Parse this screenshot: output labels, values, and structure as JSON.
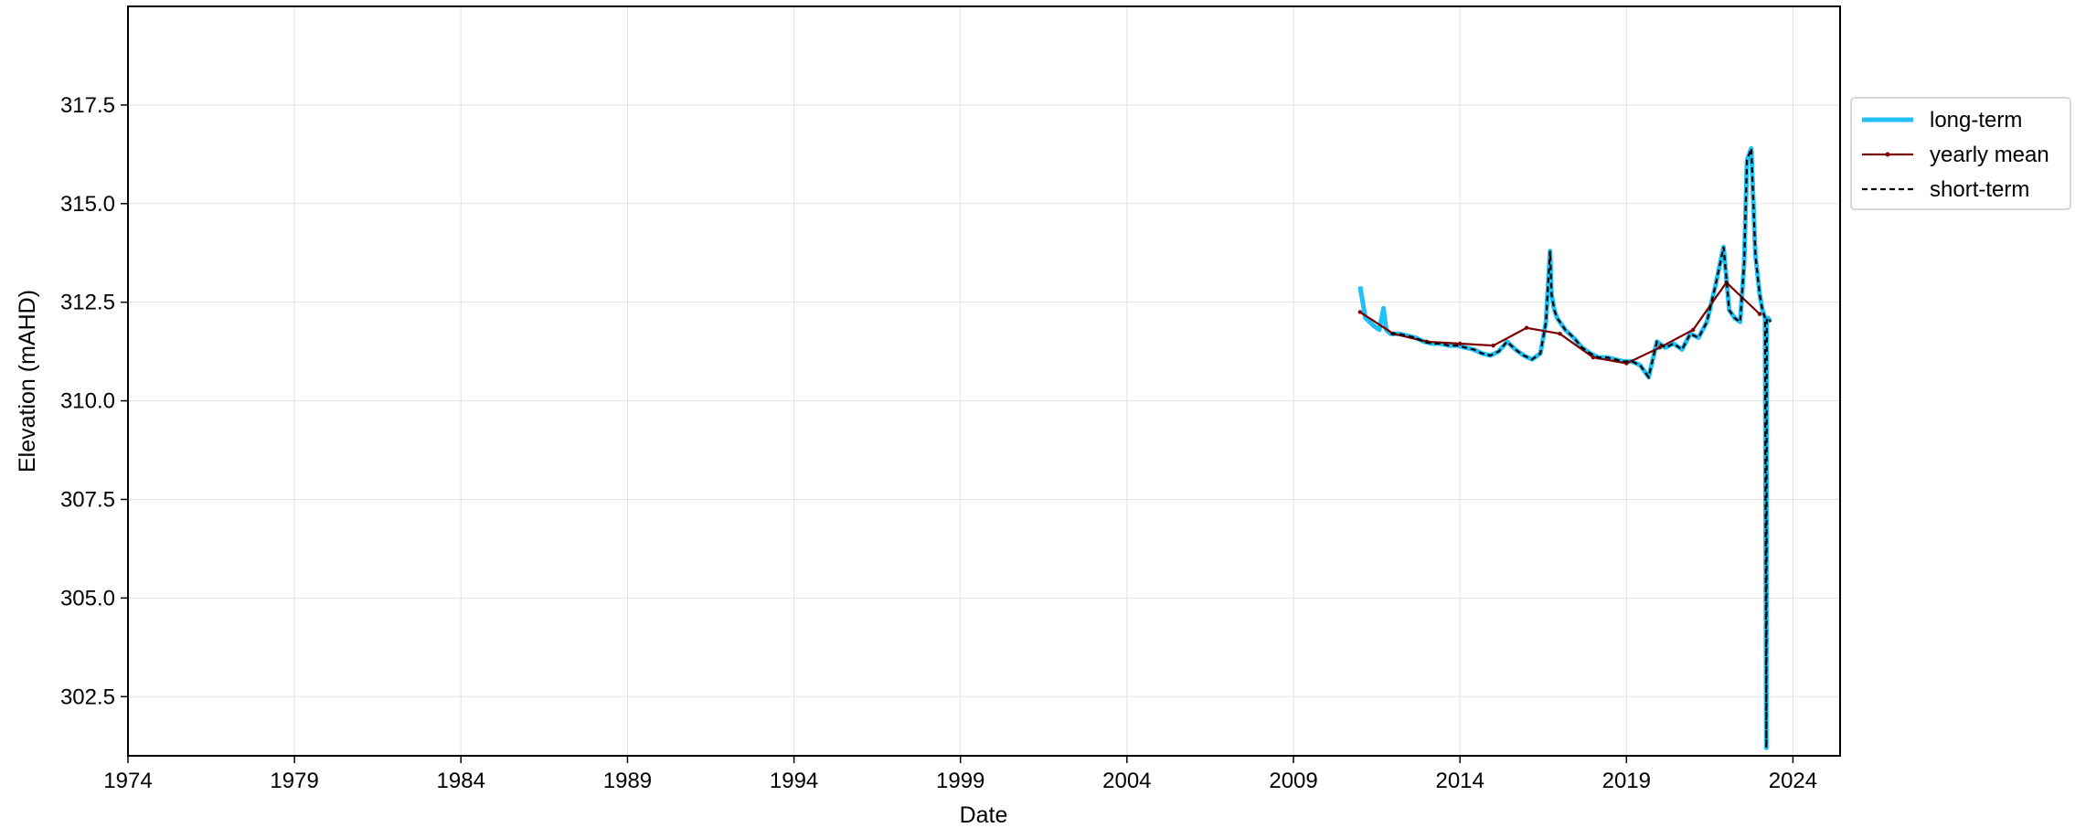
{
  "chart_data": {
    "type": "line",
    "xlabel": "Date",
    "ylabel": "Elevation (mAHD)",
    "x_axis_type": "date",
    "xlim": [
      "1974-01-01",
      "2025-06-01"
    ],
    "ylim": [
      301.0,
      320.0
    ],
    "x_ticks": [
      "1974-01-01",
      "1979-01-01",
      "1984-01-01",
      "1989-01-01",
      "1994-01-01",
      "1999-01-01",
      "2004-01-01",
      "2009-01-01",
      "2014-01-01",
      "2019-01-01",
      "2024-01-01"
    ],
    "x_tick_labels": [
      "1974",
      "1979",
      "1984",
      "1989",
      "1994",
      "1999",
      "2004",
      "2009",
      "2014",
      "2019",
      "2024"
    ],
    "y_ticks": [
      302.5,
      305.0,
      307.5,
      310.0,
      312.5,
      315.0,
      317.5
    ],
    "y_tick_labels": [
      "302.5",
      "305.0",
      "307.5",
      "310.0",
      "312.5",
      "315.0",
      "317.5"
    ],
    "grid": true,
    "legend_position": "outside-right-upper",
    "colors": {
      "long_term": "#1ec0f5",
      "yearly_mean": "#7b0000",
      "short_term": "#000000"
    },
    "series": [
      {
        "name": "long-term",
        "style": "solid-thick",
        "x": [
          "2011-01-01",
          "2011-03-01",
          "2011-06-01",
          "2011-08-01",
          "2011-09-15",
          "2011-10-15",
          "2011-12-01",
          "2012-03-01",
          "2012-06-01",
          "2012-09-01",
          "2012-12-01",
          "2013-03-01",
          "2013-06-01",
          "2013-09-01",
          "2013-12-01",
          "2014-03-01",
          "2014-06-01",
          "2014-09-01",
          "2014-12-01",
          "2015-03-01",
          "2015-06-01",
          "2015-09-01",
          "2015-12-01",
          "2016-03-01",
          "2016-06-01",
          "2016-08-01",
          "2016-09-15",
          "2016-10-01",
          "2016-11-01",
          "2016-12-01",
          "2017-03-01",
          "2017-06-01",
          "2017-09-01",
          "2017-12-01",
          "2018-03-01",
          "2018-06-01",
          "2018-09-01",
          "2018-12-01",
          "2019-03-01",
          "2019-06-01",
          "2019-09-01",
          "2019-12-01",
          "2020-03-01",
          "2020-06-01",
          "2020-09-01",
          "2020-12-01",
          "2021-03-01",
          "2021-06-01",
          "2021-09-01",
          "2021-12-01",
          "2022-02-01",
          "2022-04-01",
          "2022-06-01",
          "2022-07-15",
          "2022-08-15",
          "2022-10-01",
          "2022-11-15",
          "2023-01-01",
          "2023-02-01",
          "2023-03-01",
          "2023-03-15",
          "2023-03-20",
          "2023-04-01",
          "2023-05-01"
        ],
        "values": [
          312.9,
          312.1,
          311.9,
          311.8,
          312.35,
          311.8,
          311.7,
          311.7,
          311.65,
          311.6,
          311.5,
          311.45,
          311.45,
          311.4,
          311.4,
          311.35,
          311.3,
          311.2,
          311.15,
          311.25,
          311.5,
          311.3,
          311.15,
          311.05,
          311.2,
          312.0,
          313.8,
          312.7,
          312.3,
          312.1,
          311.8,
          311.6,
          311.35,
          311.2,
          311.1,
          311.1,
          311.05,
          311.0,
          311.0,
          310.9,
          310.6,
          311.5,
          311.35,
          311.45,
          311.3,
          311.7,
          311.6,
          312.0,
          312.9,
          313.9,
          312.3,
          312.1,
          312.0,
          313.5,
          316.1,
          316.4,
          313.7,
          312.7,
          312.3,
          312.1,
          301.2,
          312.1,
          312.1,
          312.0
        ]
      },
      {
        "name": "yearly mean",
        "style": "solid-marker",
        "x": [
          "2011-01-01",
          "2012-01-01",
          "2013-01-01",
          "2014-01-01",
          "2015-01-01",
          "2016-01-01",
          "2017-01-01",
          "2018-01-01",
          "2019-01-01",
          "2020-01-01",
          "2021-01-01",
          "2022-01-01",
          "2023-01-01"
        ],
        "values": [
          312.25,
          311.7,
          311.5,
          311.45,
          311.4,
          311.85,
          311.7,
          311.1,
          310.95,
          311.35,
          311.8,
          313.0,
          312.2
        ]
      },
      {
        "name": "short-term",
        "style": "dashed",
        "x": [
          "2011-12-01",
          "2012-03-01",
          "2012-06-01",
          "2012-09-01",
          "2012-12-01",
          "2013-03-01",
          "2013-06-01",
          "2013-09-01",
          "2013-12-01",
          "2014-03-01",
          "2014-06-01",
          "2014-09-01",
          "2014-12-01",
          "2015-03-01",
          "2015-06-01",
          "2015-09-01",
          "2015-12-01",
          "2016-03-01",
          "2016-06-01",
          "2016-08-01",
          "2016-09-15",
          "2016-10-01",
          "2016-11-01",
          "2016-12-01",
          "2017-03-01",
          "2017-06-01",
          "2017-09-01",
          "2017-12-01",
          "2018-03-01",
          "2018-06-01",
          "2018-09-01",
          "2018-12-01",
          "2019-03-01",
          "2019-06-01",
          "2019-09-01",
          "2019-12-01",
          "2020-03-01",
          "2020-06-01",
          "2020-09-01",
          "2020-12-01",
          "2021-03-01",
          "2021-06-01",
          "2021-09-01",
          "2021-12-01",
          "2022-02-01",
          "2022-04-01",
          "2022-06-01",
          "2022-07-15",
          "2022-08-15",
          "2022-10-01",
          "2022-11-15",
          "2023-01-01",
          "2023-02-01",
          "2023-03-01",
          "2023-03-15",
          "2023-03-20",
          "2023-04-01",
          "2023-05-01"
        ],
        "values": [
          311.7,
          311.7,
          311.65,
          311.6,
          311.5,
          311.45,
          311.45,
          311.4,
          311.4,
          311.35,
          311.3,
          311.2,
          311.15,
          311.25,
          311.5,
          311.3,
          311.15,
          311.05,
          311.2,
          312.0,
          313.8,
          312.7,
          312.3,
          312.1,
          311.8,
          311.6,
          311.35,
          311.2,
          311.1,
          311.1,
          311.05,
          311.0,
          311.0,
          310.9,
          310.6,
          311.5,
          311.35,
          311.45,
          311.3,
          311.7,
          311.6,
          312.0,
          312.9,
          313.9,
          312.3,
          312.1,
          312.0,
          313.5,
          316.1,
          316.4,
          313.7,
          312.7,
          312.3,
          312.1,
          301.2,
          312.1,
          312.1,
          312.0
        ]
      }
    ]
  }
}
